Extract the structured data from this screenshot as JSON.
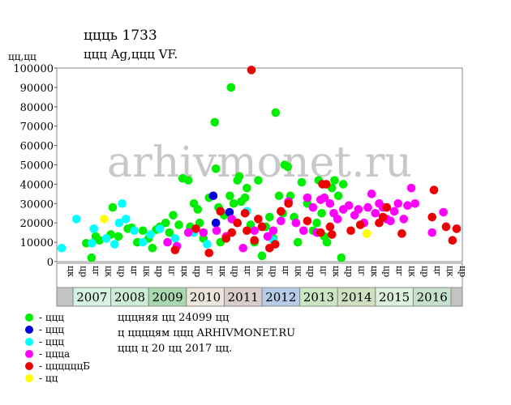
{
  "chart_data": {
    "type": "scatter",
    "title": "ццць 1733",
    "subtitle": "ццц Ag,ццц VF.",
    "y_label": "цц,цц",
    "watermark": "arhivmonet.ru",
    "xlim": [
      2006.57,
      2017.3
    ],
    "ylim": [
      0,
      100000
    ],
    "yticks": [
      0,
      10000,
      20000,
      30000,
      40000,
      50000,
      60000,
      70000,
      80000,
      90000,
      100000
    ],
    "xticks": [
      2007,
      2008,
      2009,
      2010,
      2011,
      2012,
      2013,
      2014,
      2015,
      2016
    ],
    "band_colors": [
      "#d6f2e2",
      "#cdeed6",
      "#a8d8b0",
      "#ece6dc",
      "#dccdcd",
      "#b6cce6",
      "#cce6c4",
      "#cfe0bf",
      "#dcf0dc",
      "#c6e0cc"
    ],
    "period_labels": [
      "цк",
      "цр",
      "цг",
      "цк",
      "цр",
      "цг",
      "цк",
      "цр",
      "цг",
      "цк",
      "цр",
      "цг",
      "цк",
      "цр",
      "цг",
      "цк",
      "цр",
      "цг",
      "цк",
      "цр",
      "цг",
      "цк",
      "цр",
      "цг",
      "цк",
      "цр",
      "цг",
      "цк",
      "цр",
      "цг",
      "цк",
      "цр"
    ],
    "notes": [
      "цццняя цц 24099 цц",
      "ц ццццям ццц ARHIVMONET.RU",
      "ццц ц 20 цц 2017 цц."
    ],
    "series": [
      {
        "name": "- ццц",
        "color": "#00ee00",
        "x": [
          2007.35,
          2007.49,
          2007.6,
          2007.7,
          2008.0,
          2008.05,
          2008.2,
          2008.45,
          2008.55,
          2008.7,
          2008.85,
          2009.0,
          2009.1,
          2009.2,
          2009.3,
          2009.45,
          2009.55,
          2009.65,
          2009.8,
          2009.9,
          2010.05,
          2010.1,
          2010.2,
          2010.3,
          2010.35,
          2010.45,
          2010.6,
          2010.75,
          2010.78,
          2010.85,
          2010.9,
          2011.0,
          2011.15,
          2011.18,
          2011.25,
          2011.35,
          2011.4,
          2011.45,
          2011.55,
          2011.6,
          2011.7,
          2011.8,
          2011.9,
          2012.0,
          2012.1,
          2012.2,
          2012.3,
          2012.36,
          2012.45,
          2012.55,
          2012.6,
          2012.68,
          2012.75,
          2012.85,
          2012.95,
          2013.05,
          2013.2,
          2013.35,
          2013.45,
          2013.5,
          2013.58,
          2013.65,
          2013.72,
          2013.85,
          2013.92,
          2014.02,
          2014.1,
          2014.15
        ],
        "values": [
          9500,
          2000,
          13000,
          11000,
          14000,
          28000,
          13000,
          17000,
          17500,
          10000,
          16000,
          12000,
          7000,
          16500,
          18000,
          20000,
          15000,
          24000,
          19000,
          43000,
          42000,
          18000,
          30000,
          27000,
          20000,
          12000,
          33000,
          72000,
          48000,
          28000,
          10000,
          24000,
          34000,
          90000,
          30000,
          42000,
          44000,
          31000,
          33000,
          38000,
          19000,
          10000,
          42000,
          3000,
          18000,
          23000,
          12000,
          77000,
          34000,
          25000,
          50000,
          49000,
          34000,
          23000,
          10000,
          41000,
          30000,
          16000,
          20000,
          42000,
          25000,
          13000,
          10000,
          38000,
          42000,
          34000,
          2000,
          40000
        ]
      },
      {
        "name": "- ццц",
        "color": "#0000dd",
        "x": [
          2010.71,
          2010.78,
          2011.14
        ],
        "values": [
          34000,
          20000,
          25500
        ]
      },
      {
        "name": "- ццц",
        "color": "#00ffff",
        "x": [
          2006.7,
          2007.09,
          2007.5,
          2007.55,
          2007.88,
          2008.1,
          2008.22,
          2008.3,
          2008.4,
          2008.62,
          2008.85,
          2009.05,
          2009.3,
          2009.7,
          2010.2,
          2010.55,
          2011.6,
          2012.3
        ],
        "values": [
          7000,
          22000,
          9500,
          17000,
          12000,
          9000,
          20000,
          30000,
          22000,
          16000,
          10000,
          14000,
          17000,
          12000,
          15000,
          9000,
          26000,
          11000
        ]
      },
      {
        "name": "- цццa",
        "color": "#ff00ff",
        "x": [
          2009.5,
          2009.75,
          2010.05,
          2010.45,
          2010.8,
          2011.05,
          2011.2,
          2011.5,
          2011.8,
          2012.0,
          2012.15,
          2012.3,
          2012.5,
          2012.7,
          2012.9,
          2013.1,
          2013.2,
          2013.35,
          2013.45,
          2013.55,
          2013.65,
          2013.8,
          2013.9,
          2014.0,
          2014.15,
          2014.3,
          2014.45,
          2014.55,
          2014.7,
          2014.8,
          2014.9,
          2015.0,
          2015.1,
          2015.2,
          2015.3,
          2015.4,
          2015.5,
          2015.6,
          2015.75,
          2015.85,
          2015.95,
          2016.05,
          2016.5,
          2016.8
        ],
        "values": [
          10000,
          8000,
          15000,
          15000,
          16000,
          13000,
          22000,
          7000,
          16000,
          18000,
          13000,
          16000,
          21000,
          31000,
          20000,
          16000,
          33000,
          28000,
          15000,
          32000,
          33000,
          30000,
          25000,
          22000,
          27000,
          29000,
          24000,
          27000,
          20000,
          28000,
          35000,
          25000,
          30000,
          28000,
          22000,
          21000,
          26000,
          30000,
          22000,
          29000,
          38000,
          30000,
          15000,
          25500
        ]
      },
      {
        "name": "- ццццццБ",
        "color": "#ee0000",
        "x": [
          2009.7,
          2010.25,
          2010.6,
          2010.9,
          2011.05,
          2011.2,
          2011.35,
          2011.55,
          2011.6,
          2011.72,
          2011.8,
          2011.9,
          2012.0,
          2012.2,
          2012.35,
          2012.5,
          2012.7,
          2013.2,
          2013.55,
          2013.6,
          2013.7,
          2013.8,
          2013.85,
          2014.35,
          2014.6,
          2015.1,
          2015.2,
          2015.3,
          2015.7,
          2016.5,
          2016.55,
          2016.87,
          2017.04,
          2017.15
        ],
        "values": [
          6000,
          17000,
          4500,
          26000,
          12000,
          15000,
          20000,
          25000,
          16000,
          99000,
          11000,
          22000,
          18000,
          7000,
          9000,
          26000,
          30000,
          21000,
          15000,
          40000,
          40000,
          18000,
          14000,
          16000,
          19000,
          20000,
          23000,
          28000,
          14500,
          23000,
          37000,
          18000,
          11000,
          17000
        ]
      },
      {
        "name": "- цц",
        "color": "#ffff00",
        "x": [
          2007.82,
          2014.77
        ],
        "values": [
          22000,
          14500
        ]
      }
    ]
  }
}
